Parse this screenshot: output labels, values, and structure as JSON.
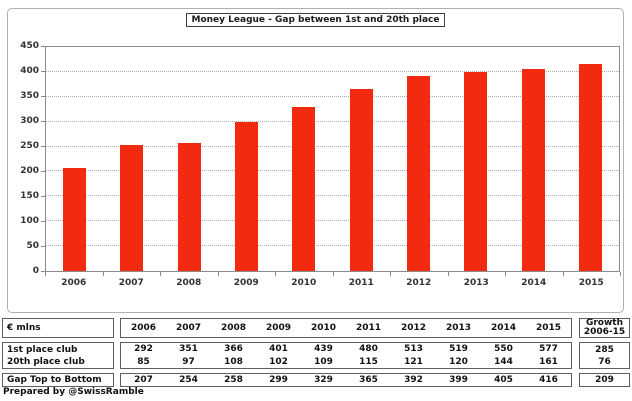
{
  "chart_data": {
    "type": "bar",
    "title": "Money League - Gap between 1st and 20th place",
    "categories": [
      "2006",
      "2007",
      "2008",
      "2009",
      "2010",
      "2011",
      "2012",
      "2013",
      "2014",
      "2015"
    ],
    "values": [
      207,
      254,
      258,
      299,
      329,
      365,
      392,
      399,
      405,
      416
    ],
    "xlabel": "",
    "ylabel": "",
    "ylim": [
      0,
      450
    ],
    "yticks": [
      0,
      50,
      100,
      150,
      200,
      250,
      300,
      350,
      400,
      450
    ],
    "grid": true,
    "legend_position": "none"
  },
  "table": {
    "unit_label": "€ mlns",
    "growth_header_line1": "Growth",
    "growth_header_line2": "2006-15",
    "rows": [
      {
        "label": "1st place club",
        "values": [
          292,
          351,
          366,
          401,
          439,
          480,
          513,
          519,
          550,
          577
        ],
        "growth": 285
      },
      {
        "label": "20th place club",
        "values": [
          85,
          97,
          108,
          102,
          109,
          115,
          121,
          120,
          144,
          161
        ],
        "growth": 76
      }
    ],
    "summary": {
      "label": "Gap Top to Bottom",
      "values": [
        207,
        254,
        258,
        299,
        329,
        365,
        392,
        399,
        405,
        416
      ],
      "growth": 209
    }
  },
  "footer": "Prepared by @SwissRamble",
  "colors": {
    "bar": "#f22a10",
    "grid": "#ababab",
    "plot_border": "#8c8c8c",
    "frame_border": "#b0b0b0",
    "table_border": "#5f5f5f"
  }
}
